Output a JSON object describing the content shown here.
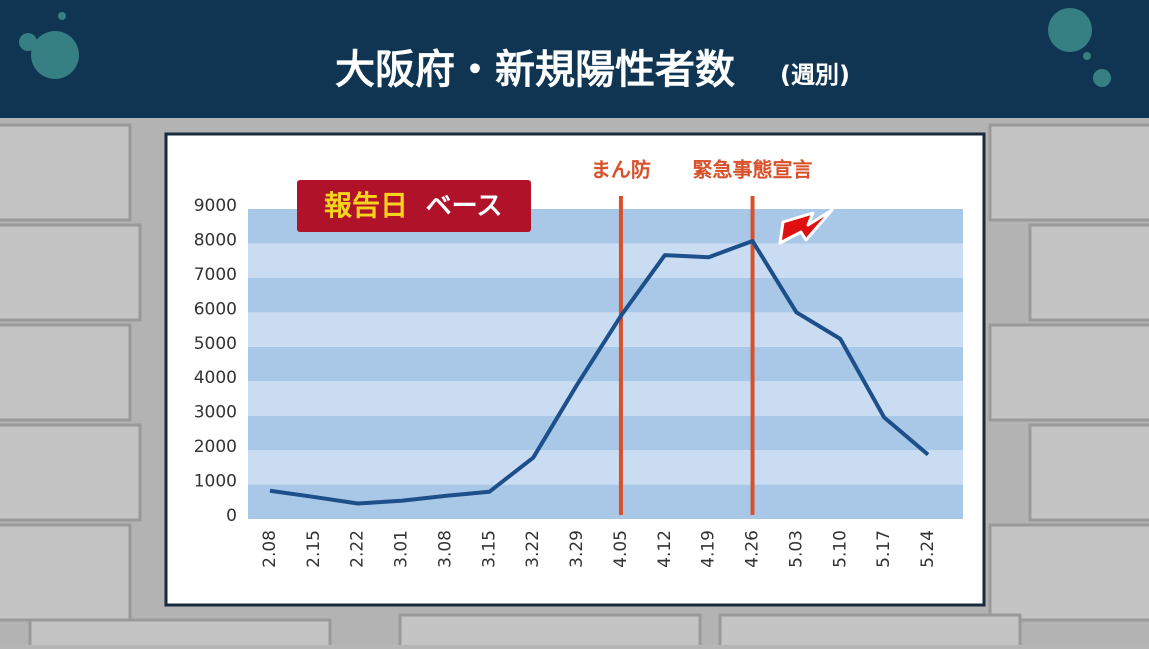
{
  "chart_data": {
    "type": "line",
    "title": "大阪府・新規陽性者数",
    "title_note": "(週別)",
    "badge": {
      "highlight": "報告日",
      "text": "ベース"
    },
    "categories": [
      "2.08",
      "2.15",
      "2.22",
      "3.01",
      "3.08",
      "3.15",
      "3.22",
      "3.29",
      "4.05",
      "4.12",
      "4.19",
      "4.26",
      "5.03",
      "5.10",
      "5.17",
      "5.24"
    ],
    "series": [
      {
        "name": "新規陽性者数",
        "color": "#1d4f8a",
        "values": [
          820,
          640,
          450,
          530,
          670,
          790,
          1780,
          3900,
          5900,
          7660,
          7600,
          8070,
          6000,
          5230,
          2950,
          1870
        ]
      }
    ],
    "annotations": [
      {
        "label": "まん防",
        "at": "4.05",
        "color": "#d9502a"
      },
      {
        "label": "緊急事態宣言",
        "at": "4.26",
        "color": "#d9502a"
      }
    ],
    "ylim": [
      0,
      9000
    ],
    "yticks": [
      0,
      1000,
      2000,
      3000,
      4000,
      5000,
      6000,
      7000,
      8000,
      9000
    ],
    "stripes": [
      "#a9c8e8",
      "#c9dcf2"
    ]
  }
}
